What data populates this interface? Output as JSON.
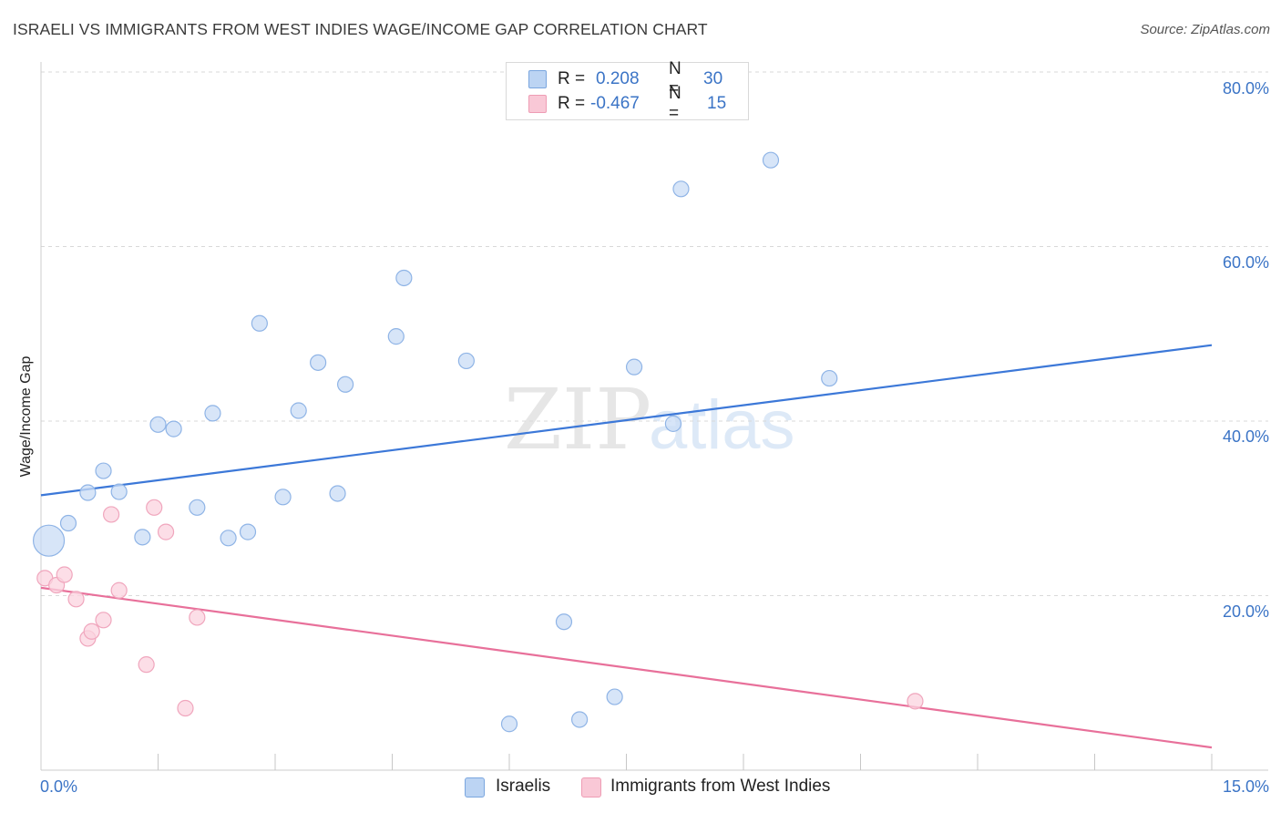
{
  "title": "ISRAELI VS IMMIGRANTS FROM WEST INDIES WAGE/INCOME GAP CORRELATION CHART",
  "source": "Source: ZipAtlas.com",
  "watermark": {
    "zip": "ZIP",
    "atlas": "atlas"
  },
  "legend": {
    "r_label": "R =",
    "n_label": "N =",
    "rows": [
      {
        "series": "Israelis",
        "r": "0.208",
        "n": "30",
        "color": "#bcd4f3",
        "border": "#7aa6df"
      },
      {
        "series": "Immigrants from West Indies",
        "r": "-0.467",
        "n": "15",
        "color": "#f9c8d6",
        "border": "#ee9cb4"
      }
    ]
  },
  "bottom_legend": [
    "Israelis",
    "Immigrants from West Indies"
  ],
  "chart_data": {
    "type": "scatter",
    "title": "ISRAELI VS IMMIGRANTS FROM WEST INDIES WAGE/INCOME GAP CORRELATION CHART",
    "xlabel": "",
    "ylabel": "Wage/Income Gap",
    "xlim": [
      0,
      15
    ],
    "ylim": [
      0,
      80
    ],
    "x_tick_labels": [
      "0.0%",
      "15.0%"
    ],
    "y_tick_labels": [
      "20.0%",
      "40.0%",
      "60.0%",
      "80.0%"
    ],
    "y_ticks": [
      20,
      40,
      60,
      80
    ],
    "grid": "horizontal dashed",
    "series": [
      {
        "name": "Israelis",
        "color": "#3c78d8",
        "point_color": "#c9dcf5",
        "point_border": "#8fb4e6",
        "points": [
          {
            "x": 0.1,
            "y": 26.3,
            "big": true
          },
          {
            "x": 0.35,
            "y": 28.3
          },
          {
            "x": 0.6,
            "y": 31.8
          },
          {
            "x": 0.8,
            "y": 34.3
          },
          {
            "x": 1.0,
            "y": 31.9
          },
          {
            "x": 1.3,
            "y": 26.7
          },
          {
            "x": 1.5,
            "y": 39.6
          },
          {
            "x": 1.7,
            "y": 39.1
          },
          {
            "x": 2.0,
            "y": 30.1
          },
          {
            "x": 2.2,
            "y": 40.9
          },
          {
            "x": 2.4,
            "y": 26.6
          },
          {
            "x": 2.65,
            "y": 27.3
          },
          {
            "x": 2.8,
            "y": 51.2
          },
          {
            "x": 3.1,
            "y": 31.3
          },
          {
            "x": 3.3,
            "y": 41.2
          },
          {
            "x": 3.55,
            "y": 46.7
          },
          {
            "x": 3.8,
            "y": 31.7
          },
          {
            "x": 3.9,
            "y": 44.2
          },
          {
            "x": 4.55,
            "y": 49.7
          },
          {
            "x": 4.65,
            "y": 56.4
          },
          {
            "x": 5.45,
            "y": 46.9
          },
          {
            "x": 6.0,
            "y": 5.3
          },
          {
            "x": 6.7,
            "y": 17.0
          },
          {
            "x": 6.9,
            "y": 5.8
          },
          {
            "x": 7.35,
            "y": 8.4
          },
          {
            "x": 7.6,
            "y": 46.2
          },
          {
            "x": 8.1,
            "y": 39.7
          },
          {
            "x": 8.2,
            "y": 66.6
          },
          {
            "x": 9.35,
            "y": 69.9
          },
          {
            "x": 10.1,
            "y": 44.9
          }
        ],
        "trend": {
          "x": [
            0,
            15
          ],
          "y": [
            31.5,
            48.7
          ]
        }
      },
      {
        "name": "Immigrants from West Indies",
        "color": "#e8709a",
        "point_color": "#fbd3df",
        "point_border": "#f0a6bd",
        "points": [
          {
            "x": 0.05,
            "y": 22.0
          },
          {
            "x": 0.2,
            "y": 21.2
          },
          {
            "x": 0.3,
            "y": 22.4
          },
          {
            "x": 0.45,
            "y": 19.6
          },
          {
            "x": 0.6,
            "y": 15.1
          },
          {
            "x": 0.65,
            "y": 15.9
          },
          {
            "x": 0.8,
            "y": 17.2
          },
          {
            "x": 0.9,
            "y": 29.3
          },
          {
            "x": 1.0,
            "y": 20.6
          },
          {
            "x": 1.35,
            "y": 12.1
          },
          {
            "x": 1.45,
            "y": 30.1
          },
          {
            "x": 1.6,
            "y": 27.3
          },
          {
            "x": 1.85,
            "y": 7.1
          },
          {
            "x": 2.0,
            "y": 17.5
          },
          {
            "x": 11.2,
            "y": 7.9
          }
        ],
        "trend": {
          "x": [
            0,
            15
          ],
          "y": [
            20.9,
            2.6
          ]
        }
      }
    ]
  }
}
